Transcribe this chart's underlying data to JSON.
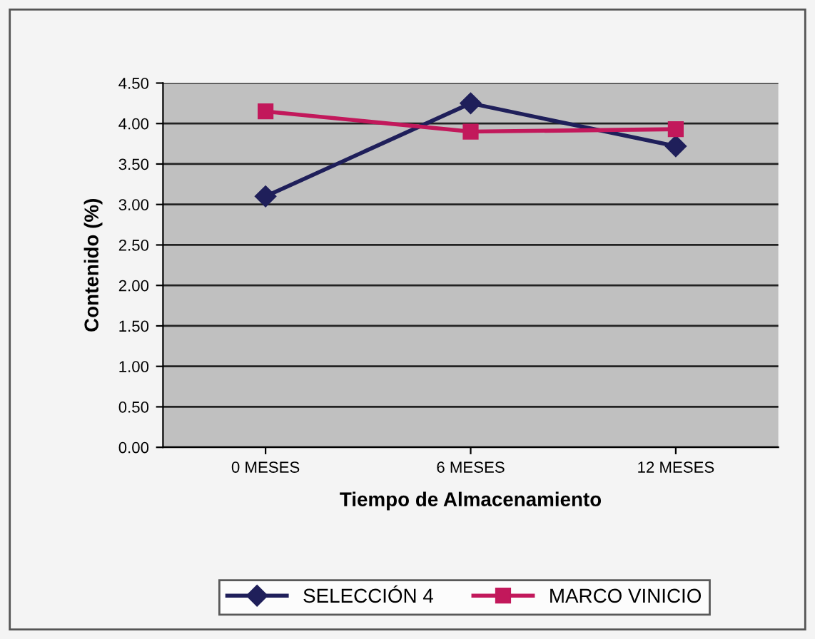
{
  "chart_data": {
    "type": "line",
    "xlabel": "Tiempo de Almacenamiento",
    "ylabel": "Contenido (%)",
    "categories": [
      "0 MESES",
      "6 MESES",
      "12 MESES"
    ],
    "series": [
      {
        "name": "SELECCIÓN 4",
        "color": "#1f1f5a",
        "marker": "diamond",
        "values": [
          3.1,
          4.25,
          3.72
        ]
      },
      {
        "name": "MARCO VINICIO",
        "color": "#c2185b",
        "marker": "square",
        "values": [
          4.15,
          3.9,
          3.93
        ]
      }
    ],
    "ylim": [
      0,
      4.5
    ],
    "yticks": [
      {
        "value": 0,
        "label": "0.00"
      },
      {
        "value": 0.5,
        "label": "0.50"
      },
      {
        "value": 1,
        "label": "1.00"
      },
      {
        "value": 1.5,
        "label": "1.50"
      },
      {
        "value": 2,
        "label": "2.00"
      },
      {
        "value": 2.5,
        "label": "2.50"
      },
      {
        "value": 3,
        "label": "3.00"
      },
      {
        "value": 3.5,
        "label": "3.50"
      },
      {
        "value": 4,
        "label": "4.00"
      },
      {
        "value": 4.5,
        "label": "4.50"
      }
    ],
    "grid": "y",
    "legend": "bottom",
    "line_style": "solid"
  }
}
